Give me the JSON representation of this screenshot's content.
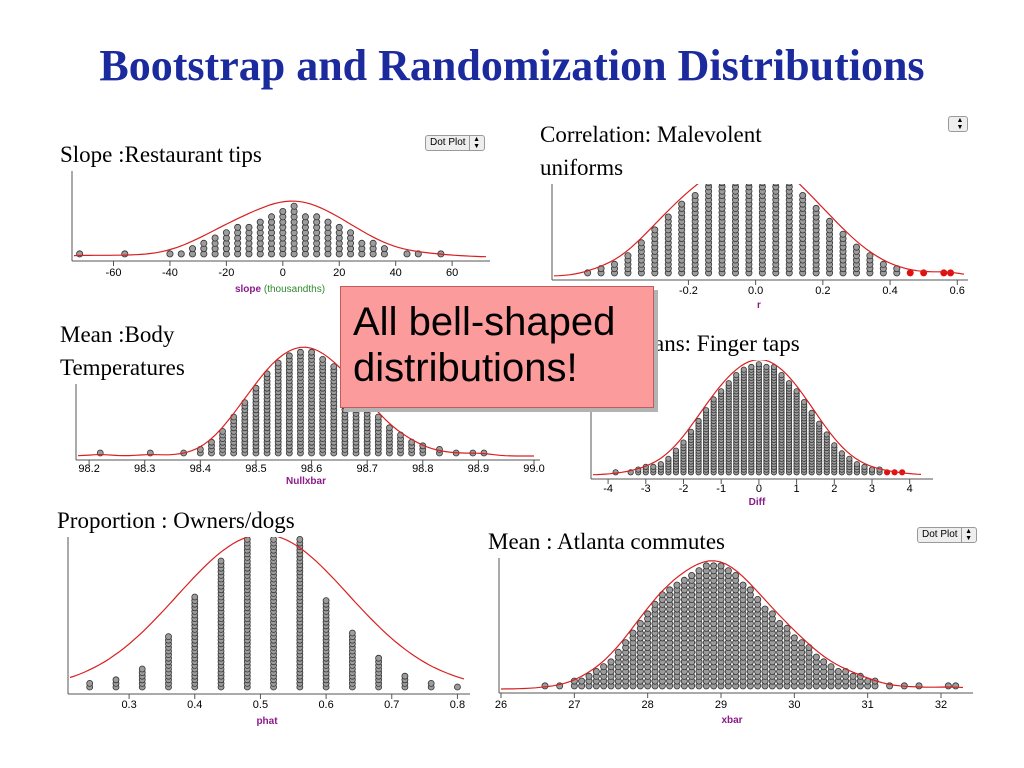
{
  "slide": {
    "title": "Bootstrap and Randomization Distributions"
  },
  "callout": {
    "line1": "All bell-shaped",
    "line2": "distributions!"
  },
  "colors": {
    "title": "#1b2a9c",
    "dot_fill": "#9c9c9c",
    "dot_stroke": "#333333",
    "curve": "#d92020",
    "tail_dot": "#e01010",
    "axis_label_purple": "#8b1a8b",
    "axis_label_green": "#2e8b2e",
    "callout_bg": "#fb9b9b"
  },
  "chart_data": [
    {
      "type": "scatter",
      "subtype": "dot-plot",
      "caption": "Slope :Restaurant tips",
      "control": "Dot Plot",
      "xlabel": "slope",
      "xlabel_extra": "(thousandths)",
      "xlim": [
        -74,
        72
      ],
      "ticks": [
        -60,
        -40,
        -20,
        0,
        20,
        40,
        60
      ],
      "bin_width": 4,
      "has_curve": true,
      "counts": [
        {
          "x": -72,
          "n": 1
        },
        {
          "x": -56,
          "n": 1
        },
        {
          "x": -40,
          "n": 1
        },
        {
          "x": -36,
          "n": 1
        },
        {
          "x": -32,
          "n": 2
        },
        {
          "x": -28,
          "n": 3
        },
        {
          "x": -24,
          "n": 4
        },
        {
          "x": -20,
          "n": 5
        },
        {
          "x": -16,
          "n": 6
        },
        {
          "x": -12,
          "n": 6
        },
        {
          "x": -8,
          "n": 7
        },
        {
          "x": -4,
          "n": 8
        },
        {
          "x": 0,
          "n": 9
        },
        {
          "x": 4,
          "n": 10
        },
        {
          "x": 8,
          "n": 8
        },
        {
          "x": 12,
          "n": 8
        },
        {
          "x": 16,
          "n": 7
        },
        {
          "x": 20,
          "n": 6
        },
        {
          "x": 24,
          "n": 5
        },
        {
          "x": 28,
          "n": 3
        },
        {
          "x": 32,
          "n": 3
        },
        {
          "x": 36,
          "n": 2
        },
        {
          "x": 44,
          "n": 1
        },
        {
          "x": 48,
          "n": 1
        },
        {
          "x": 56,
          "n": 1
        }
      ]
    },
    {
      "type": "scatter",
      "subtype": "dot-plot",
      "caption": "Correlation: Malevolent uniforms",
      "xlabel": "r",
      "xlim": [
        -0.6,
        0.62
      ],
      "ticks": [
        -0.2,
        0.0,
        0.2,
        0.4,
        0.6
      ],
      "tick_labels": [
        "-0.2",
        "0.0",
        "0.2",
        "0.4",
        "0.6"
      ],
      "bin_width": 0.02,
      "has_curve": true,
      "tail_from": 0.43,
      "counts": [
        {
          "x": -0.5,
          "n": 1
        },
        {
          "x": -0.46,
          "n": 2
        },
        {
          "x": -0.42,
          "n": 3
        },
        {
          "x": -0.38,
          "n": 5
        },
        {
          "x": -0.34,
          "n": 8
        },
        {
          "x": -0.3,
          "n": 11
        },
        {
          "x": -0.26,
          "n": 14
        },
        {
          "x": -0.22,
          "n": 17
        },
        {
          "x": -0.18,
          "n": 19
        },
        {
          "x": -0.14,
          "n": 22
        },
        {
          "x": -0.1,
          "n": 23
        },
        {
          "x": -0.06,
          "n": 24
        },
        {
          "x": -0.02,
          "n": 26
        },
        {
          "x": 0.02,
          "n": 24
        },
        {
          "x": 0.06,
          "n": 24
        },
        {
          "x": 0.1,
          "n": 22
        },
        {
          "x": 0.14,
          "n": 19
        },
        {
          "x": 0.18,
          "n": 16
        },
        {
          "x": 0.22,
          "n": 13
        },
        {
          "x": 0.26,
          "n": 10
        },
        {
          "x": 0.3,
          "n": 7
        },
        {
          "x": 0.34,
          "n": 5
        },
        {
          "x": 0.38,
          "n": 3
        },
        {
          "x": 0.42,
          "n": 2
        },
        {
          "x": 0.46,
          "n": 1
        },
        {
          "x": 0.5,
          "n": 1
        },
        {
          "x": 0.56,
          "n": 1
        },
        {
          "x": 0.58,
          "n": 1
        }
      ]
    },
    {
      "type": "scatter",
      "subtype": "dot-plot",
      "caption": "Mean :Body Temperatures",
      "xlabel": "Nullxbar",
      "xlim": [
        98.18,
        99.0
      ],
      "ticks": [
        98.2,
        98.3,
        98.4,
        98.5,
        98.6,
        98.7,
        98.8,
        98.9,
        99.0
      ],
      "tick_labels": [
        "98.2",
        "98.3",
        "98.4",
        "98.5",
        "98.6",
        "98.7",
        "98.8",
        "98.9",
        "99.0"
      ],
      "bin_width": 0.01,
      "has_curve": true,
      "counts": [
        {
          "x": 98.22,
          "n": 1
        },
        {
          "x": 98.31,
          "n": 1
        },
        {
          "x": 98.37,
          "n": 1
        },
        {
          "x": 98.4,
          "n": 2
        },
        {
          "x": 98.42,
          "n": 4
        },
        {
          "x": 98.44,
          "n": 7
        },
        {
          "x": 98.46,
          "n": 11
        },
        {
          "x": 98.48,
          "n": 15
        },
        {
          "x": 98.5,
          "n": 19
        },
        {
          "x": 98.52,
          "n": 23
        },
        {
          "x": 98.54,
          "n": 26
        },
        {
          "x": 98.56,
          "n": 28
        },
        {
          "x": 98.58,
          "n": 29
        },
        {
          "x": 98.6,
          "n": 29
        },
        {
          "x": 98.62,
          "n": 27
        },
        {
          "x": 98.64,
          "n": 25
        },
        {
          "x": 98.66,
          "n": 22
        },
        {
          "x": 98.68,
          "n": 18
        },
        {
          "x": 98.7,
          "n": 15
        },
        {
          "x": 98.72,
          "n": 11
        },
        {
          "x": 98.74,
          "n": 8
        },
        {
          "x": 98.76,
          "n": 6
        },
        {
          "x": 98.78,
          "n": 4
        },
        {
          "x": 98.8,
          "n": 3
        },
        {
          "x": 98.83,
          "n": 2
        },
        {
          "x": 98.86,
          "n": 1
        },
        {
          "x": 98.89,
          "n": 1
        },
        {
          "x": 98.91,
          "n": 1
        }
      ]
    },
    {
      "type": "scatter",
      "subtype": "dot-plot",
      "caption": "Difference in means: Finger taps",
      "caption_visible": "ans: Finger taps",
      "xlabel": "Diff",
      "xlim": [
        -4.4,
        4.3
      ],
      "ticks": [
        -4,
        -3,
        -2,
        -1,
        0,
        1,
        2,
        3,
        4
      ],
      "bin_width": 0.2,
      "has_curve": true,
      "tail_from": 3.35,
      "counts": [
        {
          "x": -3.8,
          "n": 1
        },
        {
          "x": -3.4,
          "n": 1
        },
        {
          "x": -3.2,
          "n": 2
        },
        {
          "x": -3.0,
          "n": 3
        },
        {
          "x": -2.8,
          "n": 3
        },
        {
          "x": -2.6,
          "n": 4
        },
        {
          "x": -2.4,
          "n": 6
        },
        {
          "x": -2.2,
          "n": 9
        },
        {
          "x": -2.0,
          "n": 12
        },
        {
          "x": -1.8,
          "n": 16
        },
        {
          "x": -1.6,
          "n": 20
        },
        {
          "x": -1.4,
          "n": 24
        },
        {
          "x": -1.2,
          "n": 28
        },
        {
          "x": -1.0,
          "n": 31
        },
        {
          "x": -0.8,
          "n": 34
        },
        {
          "x": -0.6,
          "n": 37
        },
        {
          "x": -0.4,
          "n": 39
        },
        {
          "x": -0.2,
          "n": 40
        },
        {
          "x": 0.0,
          "n": 41
        },
        {
          "x": 0.2,
          "n": 40
        },
        {
          "x": 0.4,
          "n": 40
        },
        {
          "x": 0.6,
          "n": 37
        },
        {
          "x": 0.8,
          "n": 34
        },
        {
          "x": 1.0,
          "n": 31
        },
        {
          "x": 1.2,
          "n": 27
        },
        {
          "x": 1.4,
          "n": 23
        },
        {
          "x": 1.6,
          "n": 19
        },
        {
          "x": 1.8,
          "n": 15
        },
        {
          "x": 2.0,
          "n": 11
        },
        {
          "x": 2.2,
          "n": 8
        },
        {
          "x": 2.4,
          "n": 6
        },
        {
          "x": 2.6,
          "n": 4
        },
        {
          "x": 2.8,
          "n": 3
        },
        {
          "x": 3.0,
          "n": 2
        },
        {
          "x": 3.2,
          "n": 2
        },
        {
          "x": 3.4,
          "n": 1
        },
        {
          "x": 3.6,
          "n": 1
        },
        {
          "x": 3.8,
          "n": 1
        }
      ]
    },
    {
      "type": "scatter",
      "subtype": "dot-plot",
      "caption": "Proportion : Owners/dogs",
      "xlabel": "phat",
      "xlim": [
        0.21,
        0.81
      ],
      "ticks": [
        0.3,
        0.4,
        0.5,
        0.6,
        0.7,
        0.8
      ],
      "tick_labels": [
        "0.3",
        "0.4",
        "0.5",
        "0.6",
        "0.7",
        "0.8"
      ],
      "bin_width": 0.04,
      "has_curve": true,
      "counts": [
        {
          "x": 0.24,
          "n": 2
        },
        {
          "x": 0.28,
          "n": 3
        },
        {
          "x": 0.32,
          "n": 6
        },
        {
          "x": 0.36,
          "n": 15
        },
        {
          "x": 0.4,
          "n": 26
        },
        {
          "x": 0.44,
          "n": 36
        },
        {
          "x": 0.48,
          "n": 42
        },
        {
          "x": 0.52,
          "n": 42
        },
        {
          "x": 0.56,
          "n": 42
        },
        {
          "x": 0.6,
          "n": 25
        },
        {
          "x": 0.64,
          "n": 16
        },
        {
          "x": 0.68,
          "n": 9
        },
        {
          "x": 0.72,
          "n": 4
        },
        {
          "x": 0.76,
          "n": 2
        },
        {
          "x": 0.8,
          "n": 1
        }
      ]
    },
    {
      "type": "scatter",
      "subtype": "dot-plot",
      "caption": "Mean : Atlanta commutes",
      "control": "Dot Plot",
      "xlabel": "xbar",
      "xlim": [
        26.0,
        32.3
      ],
      "ticks": [
        26,
        27,
        28,
        29,
        30,
        31,
        32
      ],
      "bin_width": 0.1,
      "has_curve": true,
      "counts": [
        {
          "x": 26.6,
          "n": 1
        },
        {
          "x": 26.8,
          "n": 1
        },
        {
          "x": 27.0,
          "n": 2
        },
        {
          "x": 27.1,
          "n": 2
        },
        {
          "x": 27.2,
          "n": 3
        },
        {
          "x": 27.3,
          "n": 4
        },
        {
          "x": 27.4,
          "n": 5
        },
        {
          "x": 27.5,
          "n": 6
        },
        {
          "x": 27.6,
          "n": 8
        },
        {
          "x": 27.7,
          "n": 10
        },
        {
          "x": 27.8,
          "n": 12
        },
        {
          "x": 27.9,
          "n": 14
        },
        {
          "x": 28.0,
          "n": 16
        },
        {
          "x": 28.1,
          "n": 18
        },
        {
          "x": 28.2,
          "n": 20
        },
        {
          "x": 28.3,
          "n": 21
        },
        {
          "x": 28.4,
          "n": 22
        },
        {
          "x": 28.5,
          "n": 23
        },
        {
          "x": 28.6,
          "n": 24
        },
        {
          "x": 28.7,
          "n": 25
        },
        {
          "x": 28.8,
          "n": 26
        },
        {
          "x": 28.9,
          "n": 26
        },
        {
          "x": 29.0,
          "n": 26
        },
        {
          "x": 29.1,
          "n": 25
        },
        {
          "x": 29.2,
          "n": 24
        },
        {
          "x": 29.3,
          "n": 22
        },
        {
          "x": 29.4,
          "n": 21
        },
        {
          "x": 29.5,
          "n": 19
        },
        {
          "x": 29.6,
          "n": 17
        },
        {
          "x": 29.7,
          "n": 16
        },
        {
          "x": 29.8,
          "n": 14
        },
        {
          "x": 29.9,
          "n": 13
        },
        {
          "x": 30.0,
          "n": 11
        },
        {
          "x": 30.1,
          "n": 10
        },
        {
          "x": 30.2,
          "n": 9
        },
        {
          "x": 30.3,
          "n": 7
        },
        {
          "x": 30.4,
          "n": 6
        },
        {
          "x": 30.5,
          "n": 5
        },
        {
          "x": 30.6,
          "n": 4
        },
        {
          "x": 30.7,
          "n": 4
        },
        {
          "x": 30.8,
          "n": 3
        },
        {
          "x": 30.9,
          "n": 3
        },
        {
          "x": 31.0,
          "n": 2
        },
        {
          "x": 31.1,
          "n": 2
        },
        {
          "x": 31.3,
          "n": 1
        },
        {
          "x": 31.5,
          "n": 1
        },
        {
          "x": 31.7,
          "n": 1
        },
        {
          "x": 32.1,
          "n": 1
        },
        {
          "x": 32.2,
          "n": 1
        }
      ]
    }
  ]
}
